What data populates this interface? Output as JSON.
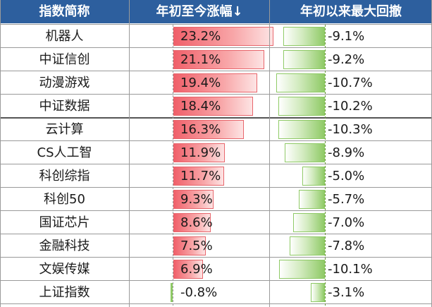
{
  "headers": {
    "name": "指数简称",
    "ytd_change": "年初至今涨幅↓",
    "ytd_drawdown": "年初以来最大回撤"
  },
  "colors": {
    "header_bg": "#2d5f9e",
    "positive_bar": "#f0606a",
    "drawdown_bar": "#8fca66"
  },
  "chart_data": {
    "type": "table",
    "columns": [
      "指数简称",
      "年初至今涨幅↓",
      "年初以来最大回撤"
    ],
    "rows": [
      {
        "name": "机器人",
        "ytd_change": 23.2,
        "ytd_change_label": "23.2%",
        "max_drawdown": -9.1,
        "max_drawdown_label": "-9.1%"
      },
      {
        "name": "中证信创",
        "ytd_change": 21.1,
        "ytd_change_label": "21.1%",
        "max_drawdown": -9.2,
        "max_drawdown_label": "-9.2%"
      },
      {
        "name": "动漫游戏",
        "ytd_change": 19.4,
        "ytd_change_label": "19.4%",
        "max_drawdown": -10.7,
        "max_drawdown_label": "-10.7%"
      },
      {
        "name": "中证数据",
        "ytd_change": 18.4,
        "ytd_change_label": "18.4%",
        "max_drawdown": -10.2,
        "max_drawdown_label": "-10.2%"
      },
      {
        "name": "云计算",
        "ytd_change": 16.3,
        "ytd_change_label": "16.3%",
        "max_drawdown": -10.3,
        "max_drawdown_label": "-10.3%"
      },
      {
        "name": "CS人工智",
        "ytd_change": 11.9,
        "ytd_change_label": "11.9%",
        "max_drawdown": -8.9,
        "max_drawdown_label": "-8.9%"
      },
      {
        "name": "科创综指",
        "ytd_change": 11.7,
        "ytd_change_label": "11.7%",
        "max_drawdown": -5.0,
        "max_drawdown_label": "-5.0%"
      },
      {
        "name": "科创50",
        "ytd_change": 9.3,
        "ytd_change_label": "9.3%",
        "max_drawdown": -5.7,
        "max_drawdown_label": "-5.7%"
      },
      {
        "name": "国证芯片",
        "ytd_change": 8.6,
        "ytd_change_label": "8.6%",
        "max_drawdown": -7.0,
        "max_drawdown_label": "-7.0%"
      },
      {
        "name": "金融科技",
        "ytd_change": 7.5,
        "ytd_change_label": "7.5%",
        "max_drawdown": -7.8,
        "max_drawdown_label": "-7.8%"
      },
      {
        "name": "文娱传媒",
        "ytd_change": 6.9,
        "ytd_change_label": "6.9%",
        "max_drawdown": -10.1,
        "max_drawdown_label": "-10.1%"
      },
      {
        "name": "上证指数",
        "ytd_change": -0.8,
        "ytd_change_label": "-0.8%",
        "max_drawdown": -3.1,
        "max_drawdown_label": "-3.1%"
      }
    ]
  }
}
